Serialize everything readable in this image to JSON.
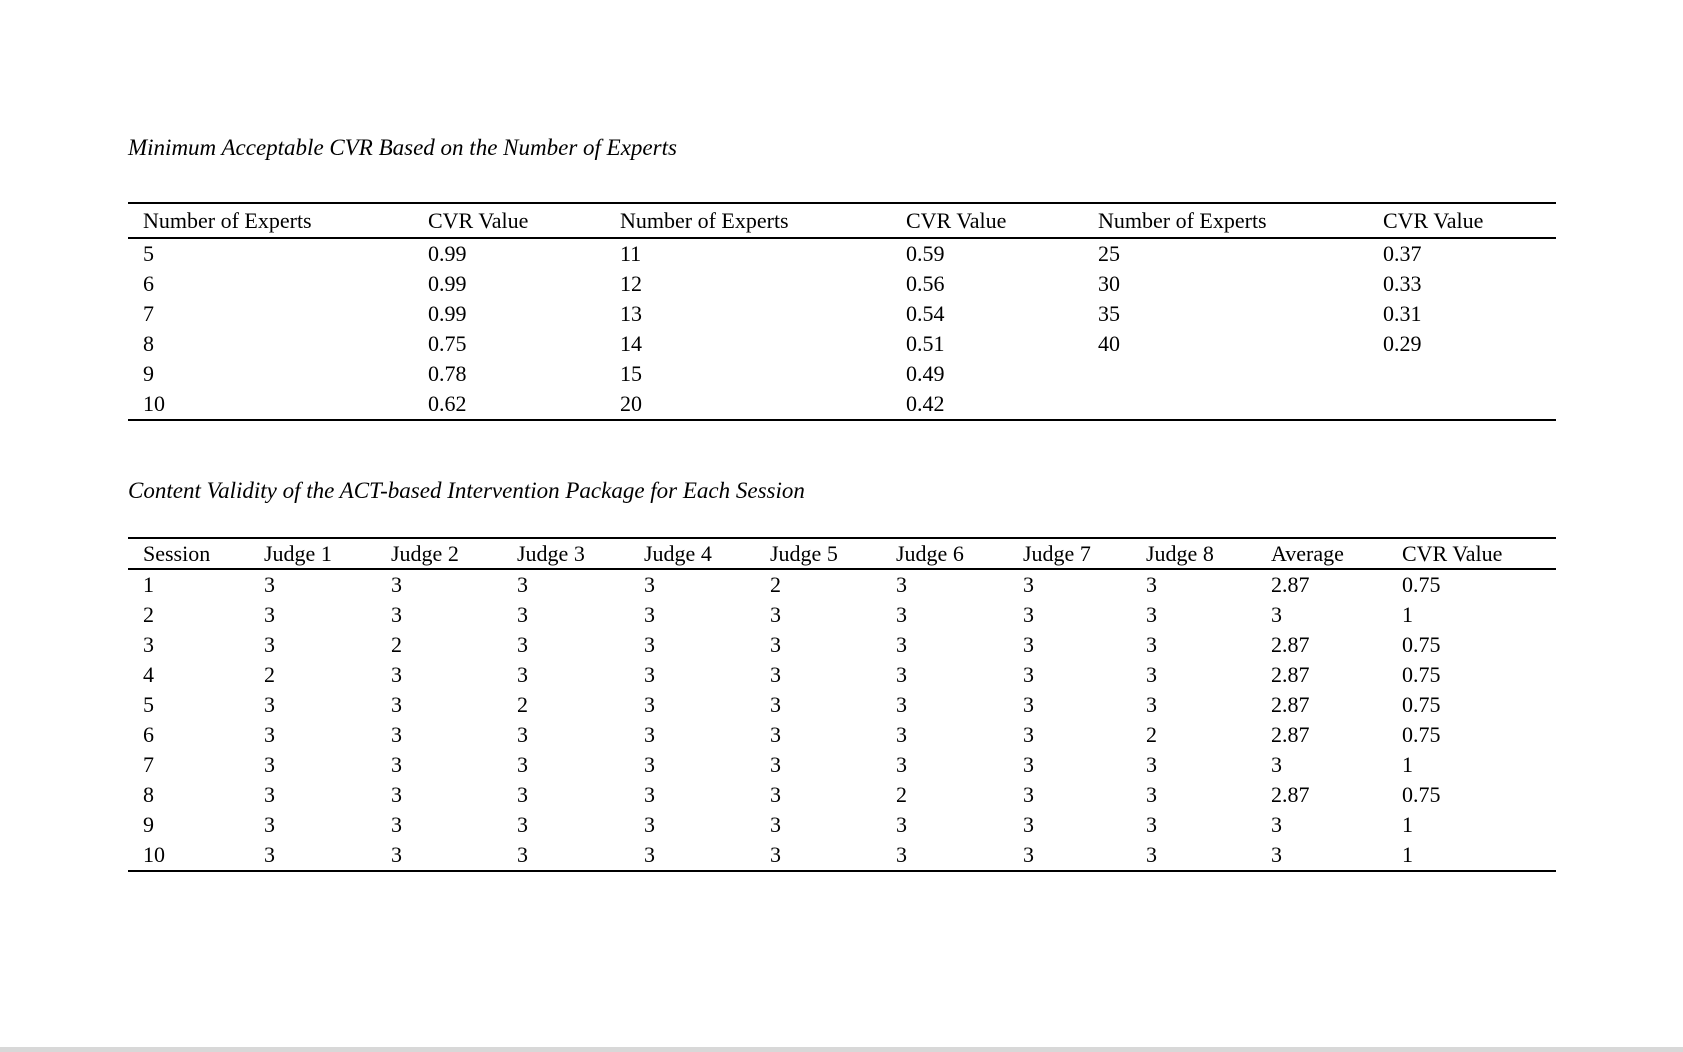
{
  "page": {
    "background_color": "#ffffff",
    "text_color": "#000000"
  },
  "table1": {
    "title": "Minimum Acceptable CVR Based on the Number of Experts",
    "columns": [
      "Number of Experts",
      "CVR Value",
      "Number of Experts",
      "CVR Value",
      "Number of Experts",
      "CVR Value"
    ],
    "rows": [
      [
        "5",
        "0.99",
        "11",
        "0.59",
        "25",
        "0.37"
      ],
      [
        "6",
        "0.99",
        "12",
        "0.56",
        "30",
        "0.33"
      ],
      [
        "7",
        "0.99",
        "13",
        "0.54",
        "35",
        "0.31"
      ],
      [
        "8",
        "0.75",
        "14",
        "0.51",
        "40",
        "0.29"
      ],
      [
        "9",
        "0.78",
        "15",
        "0.49",
        "",
        ""
      ],
      [
        "10",
        "0.62",
        "20",
        "0.42",
        "",
        ""
      ]
    ]
  },
  "table2": {
    "title": "Content Validity of the ACT-based Intervention Package for Each Session",
    "columns": [
      "Session",
      "Judge 1",
      "Judge 2",
      "Judge 3",
      "Judge 4",
      "Judge 5",
      "Judge 6",
      "Judge 7",
      "Judge 8",
      "Average",
      "CVR Value"
    ],
    "rows": [
      [
        "1",
        "3",
        "3",
        "3",
        "3",
        "2",
        "3",
        "3",
        "3",
        "2.87",
        "0.75"
      ],
      [
        "2",
        "3",
        "3",
        "3",
        "3",
        "3",
        "3",
        "3",
        "3",
        "3",
        "1"
      ],
      [
        "3",
        "3",
        "2",
        "3",
        "3",
        "3",
        "3",
        "3",
        "3",
        "2.87",
        "0.75"
      ],
      [
        "4",
        "2",
        "3",
        "3",
        "3",
        "3",
        "3",
        "3",
        "3",
        "2.87",
        "0.75"
      ],
      [
        "5",
        "3",
        "3",
        "2",
        "3",
        "3",
        "3",
        "3",
        "3",
        "2.87",
        "0.75"
      ],
      [
        "6",
        "3",
        "3",
        "3",
        "3",
        "3",
        "3",
        "3",
        "2",
        "2.87",
        "0.75"
      ],
      [
        "7",
        "3",
        "3",
        "3",
        "3",
        "3",
        "3",
        "3",
        "3",
        "3",
        "1"
      ],
      [
        "8",
        "3",
        "3",
        "3",
        "3",
        "3",
        "2",
        "3",
        "3",
        "2.87",
        "0.75"
      ],
      [
        "9",
        "3",
        "3",
        "3",
        "3",
        "3",
        "3",
        "3",
        "3",
        "3",
        "1"
      ],
      [
        "10",
        "3",
        "3",
        "3",
        "3",
        "3",
        "3",
        "3",
        "3",
        "3",
        "1"
      ]
    ]
  }
}
